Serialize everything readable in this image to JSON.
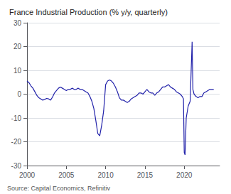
{
  "chart_data": {
    "type": "line",
    "title": "France Industrial Production (% y/y, quarterly)",
    "annotations": [
      "Source: Capital Economics, Refinitiv"
    ],
    "color": "#2222aa",
    "x": [
      2000.0,
      2000.25,
      2000.5,
      2000.75,
      2001.0,
      2001.25,
      2001.5,
      2001.75,
      2002.0,
      2002.25,
      2002.5,
      2002.75,
      2003.0,
      2003.25,
      2003.5,
      2003.75,
      2004.0,
      2004.25,
      2004.5,
      2004.75,
      2005.0,
      2005.25,
      2005.5,
      2005.75,
      2006.0,
      2006.25,
      2006.5,
      2006.75,
      2007.0,
      2007.25,
      2007.5,
      2007.75,
      2008.0,
      2008.25,
      2008.5,
      2008.75,
      2009.0,
      2009.25,
      2009.5,
      2009.75,
      2010.0,
      2010.25,
      2010.5,
      2010.75,
      2011.0,
      2011.25,
      2011.5,
      2011.75,
      2012.0,
      2012.25,
      2012.5,
      2012.75,
      2013.0,
      2013.25,
      2013.5,
      2013.75,
      2014.0,
      2014.25,
      2014.5,
      2014.75,
      2015.0,
      2015.25,
      2015.5,
      2015.75,
      2016.0,
      2016.25,
      2016.5,
      2016.75,
      2017.0,
      2017.25,
      2017.5,
      2017.75,
      2018.0,
      2018.25,
      2018.5,
      2018.75,
      2019.0,
      2019.25,
      2019.5,
      2019.75,
      2019.9,
      2020.0,
      2020.1,
      2020.25,
      2020.5,
      2020.75,
      2021.0,
      2021.1,
      2021.25,
      2021.5,
      2021.75,
      2022.0,
      2022.25,
      2022.5,
      2022.75,
      2023.0,
      2023.25,
      2023.5,
      2023.75
    ],
    "values": [
      5.5,
      4.8,
      3.5,
      2.5,
      1.0,
      -0.5,
      -1.5,
      -2.0,
      -2.5,
      -2.2,
      -1.8,
      -2.0,
      -2.5,
      -1.2,
      0.5,
      1.5,
      2.5,
      3.0,
      2.5,
      2.0,
      1.5,
      2.0,
      2.0,
      2.5,
      2.0,
      2.0,
      2.5,
      2.0,
      2.0,
      1.5,
      1.0,
      0.5,
      -1.0,
      -3.0,
      -6.0,
      -11.0,
      -16.5,
      -17.5,
      -13.0,
      -7.0,
      4.0,
      5.5,
      6.0,
      5.5,
      4.5,
      3.0,
      1.0,
      -1.5,
      -2.5,
      -2.5,
      -3.0,
      -3.5,
      -3.0,
      -2.0,
      -1.5,
      -1.0,
      -0.5,
      0.5,
      0.5,
      0.0,
      1.0,
      2.0,
      1.0,
      0.5,
      0.5,
      -0.5,
      0.5,
      1.0,
      2.0,
      3.0,
      3.0,
      3.5,
      4.0,
      3.0,
      2.5,
      2.0,
      1.0,
      0.5,
      0.0,
      -1.0,
      -2.0,
      -24.5,
      -25.5,
      -10.0,
      -5.0,
      -3.0,
      22.0,
      2.0,
      0.0,
      -1.0,
      -1.5,
      -1.0,
      -1.0,
      0.5,
      1.0,
      1.5,
      2.0,
      2.0,
      2.0
    ],
    "xlim": [
      2000,
      2024.5
    ],
    "xticks": [
      2000,
      2005,
      2010,
      2015,
      2020
    ],
    "ylim": [
      -30,
      30
    ],
    "yticks": [
      -30,
      -20,
      -10,
      0,
      10,
      20,
      30
    ],
    "grid": true
  }
}
